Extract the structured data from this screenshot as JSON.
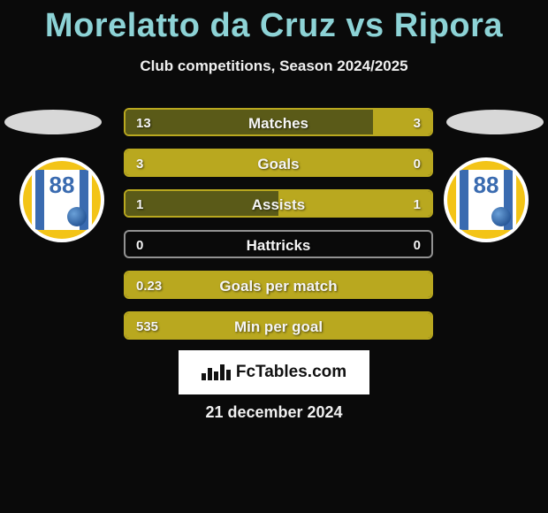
{
  "title": "Morelatto da Cruz vs Ripora",
  "subtitle": "Club competitions, Season 2024/2025",
  "date": "21 december 2024",
  "logo_text": "FcTables.com",
  "colors": {
    "title": "#8dd3d6",
    "text": "#f0f0f0",
    "background": "#0a0a0a",
    "left_bar": "#5a5a18",
    "right_bar": "#b9a81f",
    "border": "#b9a81f",
    "fill_single": "#b9a81f",
    "no_data": "#6a6a6a"
  },
  "bars": [
    {
      "label": "Matches",
      "left_val": "13",
      "right_val": "3",
      "left_pct": 81,
      "right_pct": 19,
      "left_color": "#5a5a18",
      "right_color": "#b9a81f",
      "border_color": "#b9a81f"
    },
    {
      "label": "Goals",
      "left_val": "3",
      "right_val": "0",
      "left_pct": 100,
      "right_pct": 0,
      "left_color": "#b9a81f",
      "right_color": "#b9a81f",
      "border_color": "#b9a81f"
    },
    {
      "label": "Assists",
      "left_val": "1",
      "right_val": "1",
      "left_pct": 50,
      "right_pct": 50,
      "left_color": "#5a5a18",
      "right_color": "#b9a81f",
      "border_color": "#b9a81f"
    },
    {
      "label": "Hattricks",
      "left_val": "0",
      "right_val": "0",
      "left_pct": 0,
      "right_pct": 0,
      "left_color": "#6a6a6a",
      "right_color": "#6a6a6a",
      "border_color": "#929292"
    },
    {
      "label": "Goals per match",
      "left_val": "0.23",
      "right_val": "",
      "left_pct": 100,
      "right_pct": 0,
      "left_color": "#b9a81f",
      "right_color": "#b9a81f",
      "border_color": "#b9a81f"
    },
    {
      "label": "Min per goal",
      "left_val": "535",
      "right_val": "",
      "left_pct": 100,
      "right_pct": 0,
      "left_color": "#b9a81f",
      "right_color": "#b9a81f",
      "border_color": "#b9a81f"
    }
  ],
  "badge": {
    "number": "88"
  },
  "logo_bars_heights": [
    8,
    14,
    10,
    18,
    12
  ]
}
